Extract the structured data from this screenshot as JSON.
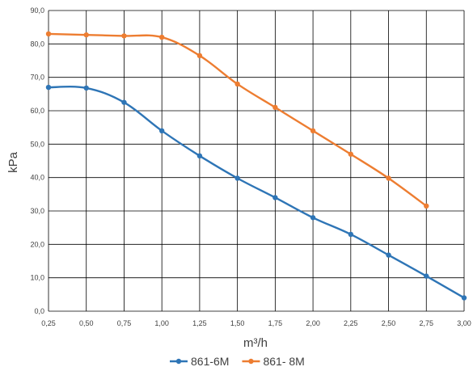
{
  "chart_data": {
    "type": "line",
    "title": "",
    "xlabel": "m³/h",
    "ylabel": "kPa",
    "x": [
      0.25,
      0.5,
      0.75,
      1.0,
      1.25,
      1.5,
      1.75,
      2.0,
      2.25,
      2.5,
      2.75,
      3.0
    ],
    "x_tick_labels": [
      "0,25",
      "0,50",
      "0,75",
      "1,00",
      "1,25",
      "1,50",
      "1,75",
      "2,00",
      "2,25",
      "2,50",
      "2,75",
      "3,00"
    ],
    "y_ticks": [
      0,
      10,
      20,
      30,
      40,
      50,
      60,
      70,
      80,
      90
    ],
    "y_tick_labels": [
      "0,0",
      "10,0",
      "20,0",
      "30,0",
      "40,0",
      "50,0",
      "60,0",
      "70,0",
      "80,0",
      "90,0"
    ],
    "xlim": [
      0.25,
      3.0
    ],
    "ylim": [
      0,
      90
    ],
    "grid": true,
    "legend_position": "bottom",
    "series": [
      {
        "name": "861-6M",
        "color": "#2E75B6",
        "x": [
          0.25,
          0.5,
          0.75,
          1.0,
          1.25,
          1.5,
          1.75,
          2.0,
          2.25,
          2.5,
          2.75,
          3.0
        ],
        "values": [
          67.0,
          66.8,
          62.5,
          54.0,
          46.5,
          39.8,
          34.0,
          28.0,
          23.0,
          16.8,
          10.5,
          4.0
        ]
      },
      {
        "name": "861- 8M",
        "color": "#ED7D31",
        "x": [
          0.25,
          0.5,
          0.75,
          1.0,
          1.25,
          1.5,
          1.75,
          2.0,
          2.25,
          2.5,
          2.75
        ],
        "values": [
          83.0,
          82.7,
          82.4,
          82.0,
          76.5,
          68.0,
          61.0,
          54.0,
          47.0,
          39.8,
          31.5
        ]
      }
    ]
  }
}
